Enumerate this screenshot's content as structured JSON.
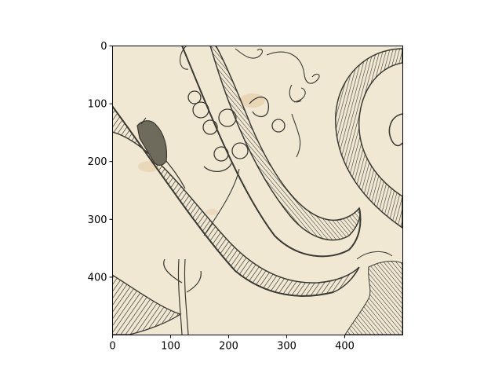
{
  "chart_data": {
    "type": "image",
    "x_ticks": [
      0,
      100,
      200,
      300,
      400
    ],
    "y_ticks": [
      0,
      100,
      200,
      300,
      400
    ],
    "xlim": [
      0,
      500
    ],
    "ylim": [
      500,
      0
    ],
    "y_inverted": true,
    "grid": false,
    "title": "",
    "xlabel": "",
    "ylabel": ""
  },
  "colors": {
    "paper": "#f1e8d4",
    "ink": "#3a3a32",
    "ink_light": "#6e6a5c",
    "stain": "#d9b57a"
  }
}
